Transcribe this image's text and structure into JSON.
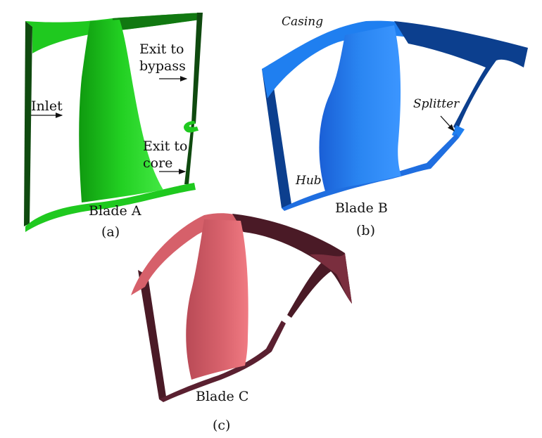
{
  "panels": [
    {
      "id": "a",
      "caption": "(a)",
      "title": "Blade A",
      "color": "#1fc91f",
      "dark_color": "#0f4a0f",
      "annotations": [
        "Inlet",
        "Exit to",
        "bypass",
        "Exit to",
        "core"
      ]
    },
    {
      "id": "b",
      "caption": "(b)",
      "title": "Blade B",
      "color": "#1f7ff0",
      "dark_color": "#0c3f8e",
      "annotations": [
        "Casing",
        "Splitter",
        "Hub"
      ]
    },
    {
      "id": "c",
      "caption": "(c)",
      "title": "Blade C",
      "color": "#d6606a",
      "dark_color": "#4a1a26",
      "annotations": []
    }
  ]
}
